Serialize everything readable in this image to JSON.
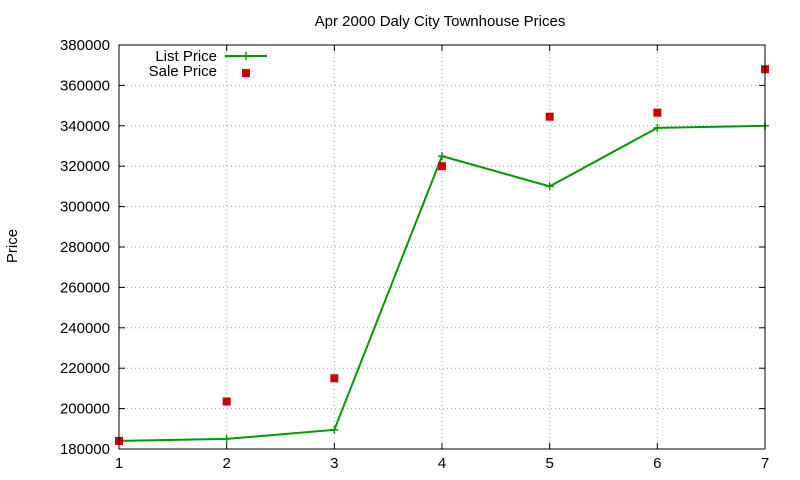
{
  "chart_data": {
    "type": "line",
    "title": "Apr 2000 Daly City Townhouse Prices",
    "xlabel": "",
    "ylabel": "Price",
    "xlim": [
      1,
      7
    ],
    "ylim": [
      180000,
      380000
    ],
    "x_ticks": [
      1,
      2,
      3,
      4,
      5,
      6,
      7
    ],
    "y_ticks": [
      180000,
      200000,
      220000,
      240000,
      260000,
      280000,
      300000,
      320000,
      340000,
      360000,
      380000
    ],
    "grid": true,
    "legend_position": "top-left",
    "series": [
      {
        "name": "List Price",
        "style": "line+cross",
        "color": "#009900",
        "points": [
          [
            1,
            184000
          ],
          [
            2,
            185000
          ],
          [
            3,
            189500
          ],
          [
            4,
            325000
          ],
          [
            5,
            310000
          ],
          [
            6,
            339000
          ],
          [
            7,
            340000
          ]
        ]
      },
      {
        "name": "Sale Price",
        "style": "square",
        "color": "#cc0000",
        "points": [
          [
            1,
            184000
          ],
          [
            2,
            203500
          ],
          [
            3,
            215000
          ],
          [
            4,
            320000
          ],
          [
            5,
            344500
          ],
          [
            6,
            346500
          ],
          [
            7,
            368000
          ]
        ]
      }
    ]
  }
}
